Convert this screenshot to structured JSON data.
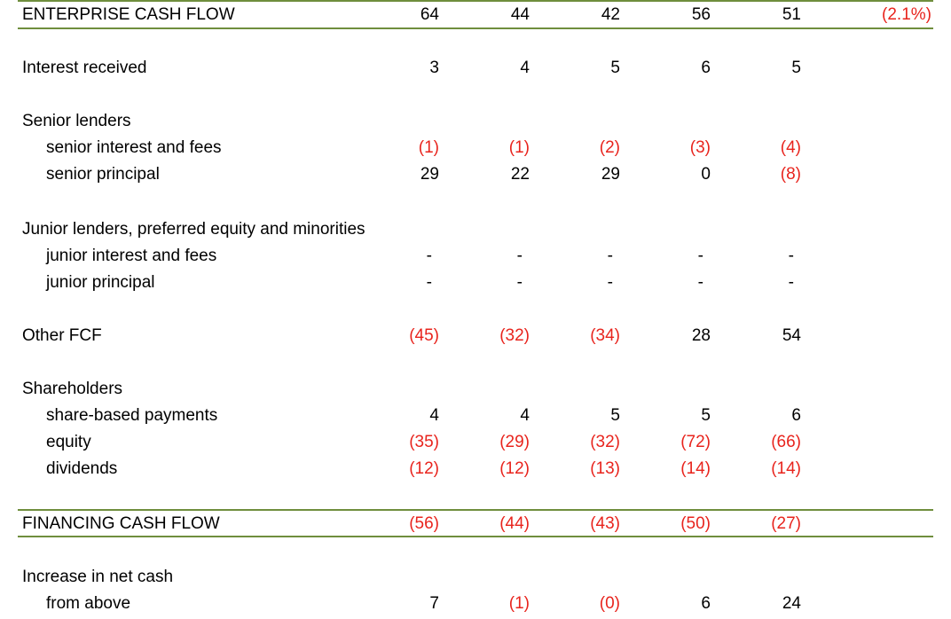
{
  "rows": [
    {
      "key": "enterprise",
      "label": "ENTERPRISE CASH FLOW",
      "values": [
        "64",
        "44",
        "42",
        "56",
        "51"
      ],
      "extra": "(2.1%)"
    },
    {
      "key": "interest",
      "label": "Interest received",
      "values": [
        "3",
        "4",
        "5",
        "6",
        "5"
      ]
    },
    {
      "key": "senior_head",
      "label": "Senior lenders"
    },
    {
      "key": "senior_interest",
      "label": "senior interest and fees",
      "values": [
        "(1)",
        "(1)",
        "(2)",
        "(3)",
        "(4)"
      ]
    },
    {
      "key": "senior_principal",
      "label": "senior principal",
      "values": [
        "29",
        "22",
        "29",
        "0",
        "(8)"
      ]
    },
    {
      "key": "junior_head",
      "label": "Junior lenders, preferred equity and minorities"
    },
    {
      "key": "junior_interest",
      "label": "junior interest and fees",
      "values": [
        "-",
        "-",
        "-",
        "-",
        "-"
      ]
    },
    {
      "key": "junior_principal",
      "label": "junior principal",
      "values": [
        "-",
        "-",
        "-",
        "-",
        "-"
      ]
    },
    {
      "key": "other_fcf",
      "label": "Other FCF",
      "values": [
        "(45)",
        "(32)",
        "(34)",
        "28",
        "54"
      ]
    },
    {
      "key": "share_head",
      "label": "Shareholders"
    },
    {
      "key": "share_based",
      "label": "share-based payments",
      "values": [
        "4",
        "4",
        "5",
        "5",
        "6"
      ]
    },
    {
      "key": "equity",
      "label": "equity",
      "values": [
        "(35)",
        "(29)",
        "(32)",
        "(72)",
        "(66)"
      ]
    },
    {
      "key": "dividends",
      "label": "dividends",
      "values": [
        "(12)",
        "(12)",
        "(13)",
        "(14)",
        "(14)"
      ]
    },
    {
      "key": "financing",
      "label": "FINANCING CASH FLOW",
      "values": [
        "(56)",
        "(44)",
        "(43)",
        "(50)",
        "(27)"
      ]
    },
    {
      "key": "net_cash_head",
      "label": "Increase in net cash"
    },
    {
      "key": "from_above",
      "label": "from above",
      "values": [
        "7",
        "(1)",
        "(0)",
        "6",
        "24"
      ]
    }
  ],
  "colors": {
    "negative": "#e8241d",
    "rule": "#6f8e3d",
    "text": "#000000"
  }
}
